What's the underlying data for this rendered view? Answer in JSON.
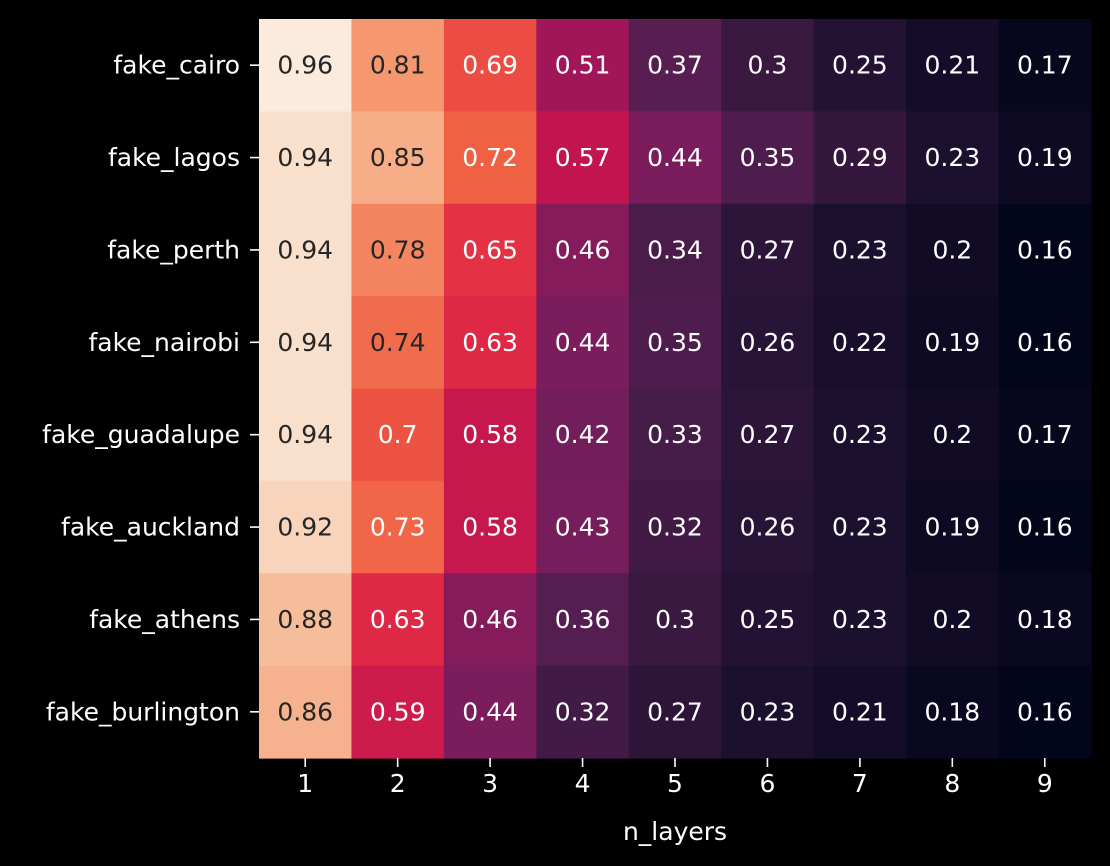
{
  "chart_data": {
    "type": "heatmap",
    "title": "",
    "xlabel": "n_layers",
    "ylabel": "",
    "x": [
      "1",
      "2",
      "3",
      "4",
      "5",
      "6",
      "7",
      "8",
      "9"
    ],
    "y": [
      "fake_cairo",
      "fake_lagos",
      "fake_perth",
      "fake_nairobi",
      "fake_guadalupe",
      "fake_auckland",
      "fake_athens",
      "fake_burlington"
    ],
    "values": [
      [
        "0.96",
        "0.81",
        "0.69",
        "0.51",
        "0.37",
        "0.3",
        "0.25",
        "0.21",
        "0.17"
      ],
      [
        "0.94",
        "0.85",
        "0.72",
        "0.57",
        "0.44",
        "0.35",
        "0.29",
        "0.23",
        "0.19"
      ],
      [
        "0.94",
        "0.78",
        "0.65",
        "0.46",
        "0.34",
        "0.27",
        "0.23",
        "0.2",
        "0.16"
      ],
      [
        "0.94",
        "0.74",
        "0.63",
        "0.44",
        "0.35",
        "0.26",
        "0.22",
        "0.19",
        "0.16"
      ],
      [
        "0.94",
        "0.7",
        "0.58",
        "0.42",
        "0.33",
        "0.27",
        "0.23",
        "0.2",
        "0.17"
      ],
      [
        "0.92",
        "0.73",
        "0.58",
        "0.43",
        "0.32",
        "0.26",
        "0.23",
        "0.19",
        "0.16"
      ],
      [
        "0.88",
        "0.63",
        "0.46",
        "0.36",
        "0.3",
        "0.25",
        "0.23",
        "0.2",
        "0.18"
      ],
      [
        "0.86",
        "0.59",
        "0.44",
        "0.32",
        "0.27",
        "0.23",
        "0.21",
        "0.18",
        "0.16"
      ]
    ],
    "colormap": "rocket",
    "colorbar": false,
    "grid": false
  },
  "colors": {
    "background": "#000000",
    "text_light": "#ffffff",
    "text_dark": "#262626"
  }
}
